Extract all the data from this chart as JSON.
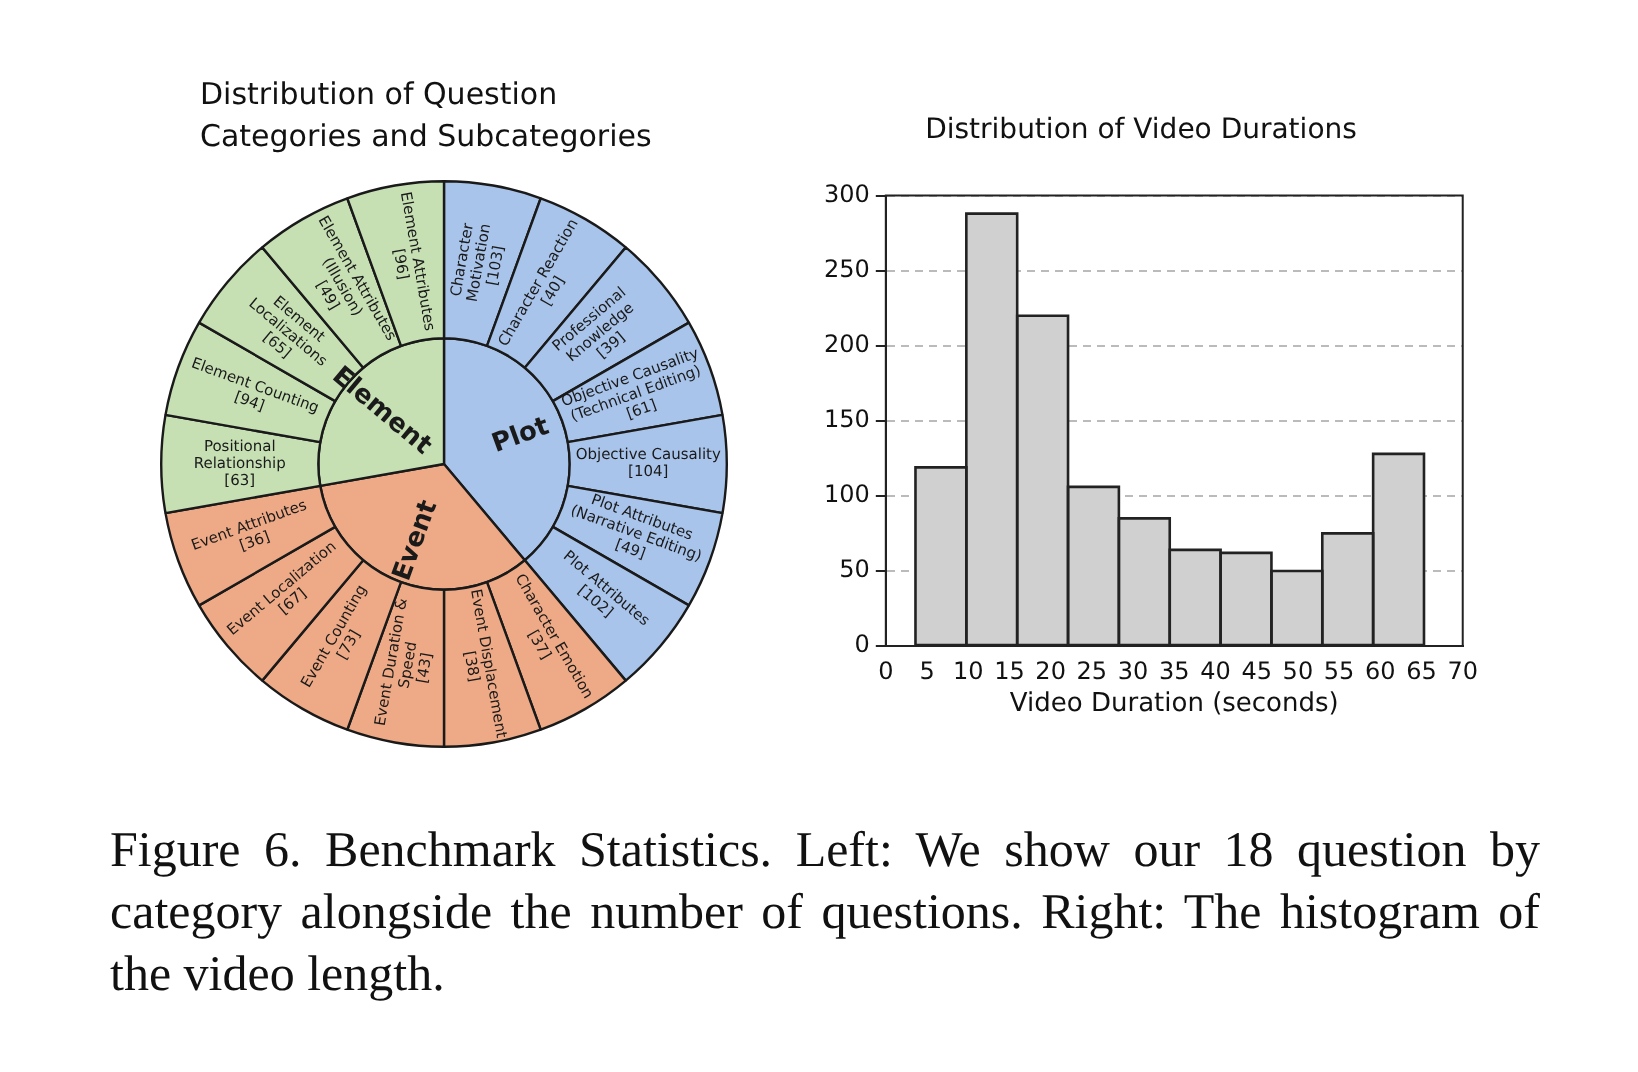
{
  "chart_data": [
    {
      "type": "other",
      "title": "Distribution of Question Categories and Subcategories",
      "categories": [
        "Character Motivation",
        "Character Reaction",
        "Professional Knowledge",
        "Objective Causality (Technical Editing)",
        "Objective Causality",
        "Plot Attributes (Narrative Editing)",
        "Plot Attributes",
        "Character Emotion",
        "Event Displacement",
        "Event Duration & Speed",
        "Event Counting",
        "Event Localization",
        "Event Attributes",
        "Positional Relationship",
        "Element Counting",
        "Element Localizations",
        "Element Attributes (Illusion)",
        "Element Attributes"
      ],
      "series": [
        {
          "name": "Plot",
          "color": "#a9c4ea",
          "values": [
            103,
            40,
            39,
            61,
            104,
            49,
            102,
            null,
            null,
            null,
            null,
            null,
            null,
            null,
            null,
            null,
            null,
            null
          ],
          "value_labels": [
            "[103]",
            "[40]",
            "[39]",
            "[61]",
            "[104]",
            "[49]",
            "[102]",
            null,
            null,
            null,
            null,
            null,
            null,
            null,
            null,
            null,
            null,
            null
          ]
        },
        {
          "name": "Event",
          "color": "#eeaa86",
          "values": [
            null,
            null,
            null,
            null,
            null,
            null,
            null,
            37,
            38,
            43,
            73,
            67,
            36,
            null,
            null,
            null,
            null,
            null
          ],
          "value_labels": [
            null,
            null,
            null,
            null,
            null,
            null,
            null,
            "[37]",
            "[38]",
            "[43]",
            "[73]",
            "[67]",
            "[36]",
            null,
            null,
            null,
            null,
            null
          ]
        },
        {
          "name": "Element",
          "color": "#c6e0b4",
          "values": [
            null,
            null,
            null,
            null,
            null,
            null,
            null,
            null,
            null,
            null,
            null,
            null,
            null,
            63,
            94,
            65,
            49,
            96
          ],
          "value_labels": [
            null,
            null,
            null,
            null,
            null,
            null,
            null,
            null,
            null,
            null,
            null,
            null,
            null,
            "[63]",
            "[94]",
            "[65]",
            "[49]",
            "[96]"
          ]
        }
      ],
      "annotations": [
        "Figure 6. Benchmark Statistics. Left: We show our 18 question by category alongside the number of questions. Right: The histogram of the video length."
      ]
    },
    {
      "type": "histogram",
      "title": "Distribution of Video Durations",
      "xlabel": "Video Duration (seconds)",
      "color": "#d0d0d0",
      "bins": [
        3.6,
        9.77,
        15.94,
        22.11,
        28.28,
        34.45,
        40.62,
        46.79,
        52.96,
        59.13,
        65.3
      ],
      "values": [
        119,
        288,
        220,
        106,
        85,
        64,
        62,
        50,
        75,
        128
      ],
      "xlim": [
        0,
        70
      ],
      "xticks": [
        0,
        5,
        10,
        15,
        20,
        25,
        30,
        35,
        40,
        45,
        50,
        55,
        60,
        65,
        70
      ],
      "ylim": [
        0,
        300
      ],
      "yticks": [
        0,
        50,
        100,
        150,
        200,
        250,
        300
      ],
      "grid": "y"
    }
  ]
}
